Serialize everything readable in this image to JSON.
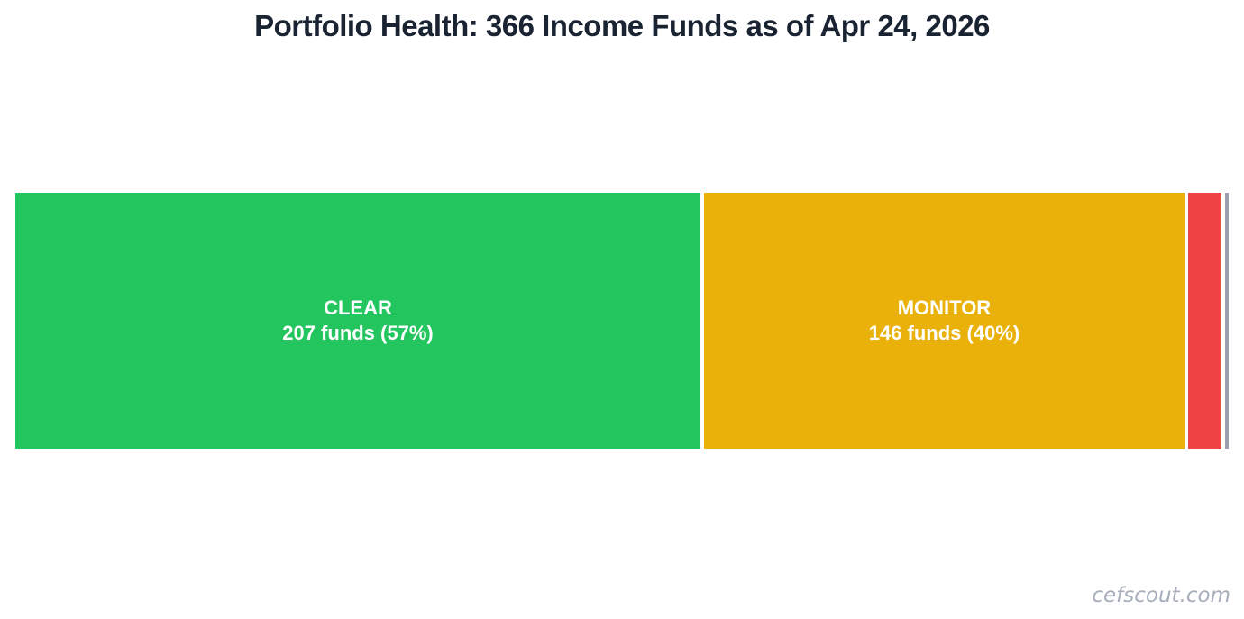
{
  "styles": {
    "title": "color:#1a2332",
    "watermark": "color:#a7aebb"
  },
  "watermark": {
    "text": "cefscout.com",
    "color": "#a7aebb"
  },
  "chart_data": {
    "type": "bar",
    "variant": "horizontal-proportional-status-bar",
    "title": "Portfolio Health: 366 Income Funds as of Apr 24, 2026",
    "as_of_date": "Apr 24, 2026",
    "total_funds": 366,
    "axes": "none",
    "grid": "off",
    "legend": "none",
    "background": "#ffffff",
    "segments": [
      {
        "label": "CLEAR",
        "detail": "207 funds (57%)",
        "funds": 207,
        "pct": 57,
        "estimated": false,
        "color": "#22c55e",
        "text_color": "#ffffff",
        "width_pct": 56.42
      },
      {
        "label": "MONITOR",
        "detail": "146 funds (40%)",
        "funds": 146,
        "pct": 40,
        "estimated": false,
        "color": "#e9b10a",
        "text_color": "#ffffff",
        "width_pct": 39.57
      },
      {
        "label": "",
        "detail": "",
        "funds": 12,
        "pct": 3,
        "estimated": true,
        "color": "#ee4444",
        "text_color": "#ffffff",
        "width_pct": 2.75
      },
      {
        "label": "",
        "detail": "",
        "funds": 1,
        "pct": 0,
        "estimated": true,
        "color": "#9aa1ae",
        "text_color": "#ffffff",
        "width_pct": 0.3
      }
    ]
  }
}
